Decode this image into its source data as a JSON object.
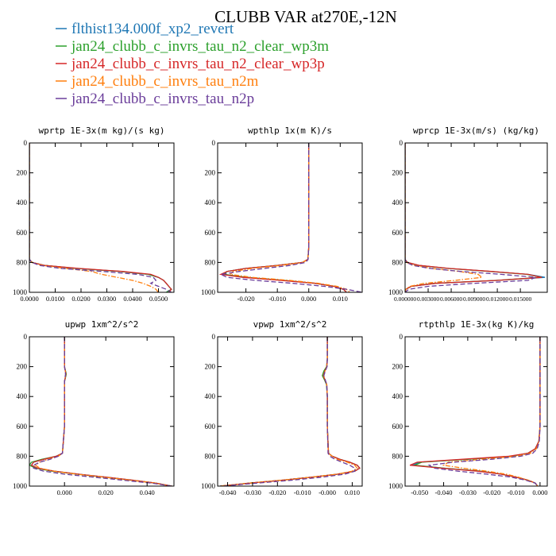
{
  "title": "CLUBB VAR at270E,-12N",
  "legend": [
    {
      "label": "flthist134.000f_xp2_revert",
      "color": "#1f77b4",
      "dash": "solid"
    },
    {
      "label": "jan24_clubb_c_invrs_tau_n2_clear_wp3m",
      "color": "#2ca02c",
      "dash": "solid"
    },
    {
      "label": "jan24_clubb_c_invrs_tau_n2_clear_wp3p",
      "color": "#d62728",
      "dash": "solid"
    },
    {
      "label": "jan24_clubb_c_invrs_tau_n2m",
      "color": "#ff7f0e",
      "dash": "dashdot"
    },
    {
      "label": "jan24_clubb_c_invrs_tau_n2p",
      "color": "#6a3d9a",
      "dash": "dash"
    }
  ],
  "chart_data": [
    {
      "type": "line",
      "title": "wprtp  1E-3x(m kg)/(s kg)",
      "xlim": [
        0,
        0.056
      ],
      "ylim": [
        1000,
        0
      ],
      "xticks": [
        "0.0000",
        "0.0100",
        "0.0200",
        "0.0300",
        "0.0400",
        "0.0500"
      ],
      "xtick_values": [
        0,
        0.01,
        0.02,
        0.03,
        0.04,
        0.05
      ],
      "yticks": [
        "0",
        "200",
        "400",
        "600",
        "800",
        "1000"
      ],
      "y": [
        0,
        780,
        800,
        820,
        840,
        860,
        880,
        900,
        920,
        940,
        960,
        980,
        1000
      ],
      "series": [
        {
          "values": [
            0,
            0,
            0.001,
            0.006,
            0.018,
            0.035,
            0.046,
            0.05,
            0.052,
            0.053,
            0.054,
            0.055,
            0.053
          ]
        },
        {
          "values": [
            0,
            0,
            0.001,
            0.006,
            0.018,
            0.035,
            0.046,
            0.05,
            0.052,
            0.053,
            0.054,
            0.055,
            0.053
          ]
        },
        {
          "values": [
            0,
            0,
            0.001,
            0.006,
            0.019,
            0.036,
            0.047,
            0.05,
            0.052,
            0.053,
            0.054,
            0.055,
            0.054
          ]
        },
        {
          "values": [
            0,
            0,
            0.001,
            0.005,
            0.014,
            0.024,
            0.028,
            0.034,
            0.04,
            0.044,
            0.047,
            0.049,
            0.05
          ]
        },
        {
          "values": [
            0,
            0,
            0.001,
            0.004,
            0.012,
            0.028,
            0.042,
            0.048,
            0.049,
            0.047,
            0.05,
            0.053,
            0.055
          ]
        }
      ]
    },
    {
      "type": "line",
      "title": "wpthlp  1x(m K)/s",
      "xlim": [
        -0.029,
        0.017
      ],
      "ylim": [
        1000,
        0
      ],
      "xticks": [
        "-0.020",
        "-0.010",
        "0.000",
        "0.010"
      ],
      "xtick_values": [
        -0.02,
        -0.01,
        0,
        0.01
      ],
      "yticks": [
        "0",
        "200",
        "400",
        "600",
        "800",
        "1000"
      ],
      "y": [
        0,
        200,
        400,
        600,
        700,
        780,
        800,
        820,
        840,
        860,
        880,
        900,
        920,
        940,
        960,
        980,
        1000
      ],
      "series": [
        {
          "values": [
            0,
            0,
            0,
            0,
            0,
            -0.0003,
            -0.002,
            -0.01,
            -0.02,
            -0.026,
            -0.027,
            -0.02,
            -0.008,
            0.002,
            0.008,
            0.011,
            0.012
          ]
        },
        {
          "values": [
            0,
            0,
            0,
            0,
            0,
            -0.0003,
            -0.002,
            -0.01,
            -0.02,
            -0.026,
            -0.027,
            -0.02,
            -0.008,
            0.002,
            0.008,
            0.011,
            0.012
          ]
        },
        {
          "values": [
            0,
            0,
            0,
            0,
            0,
            -0.0003,
            -0.002,
            -0.01,
            -0.02,
            -0.026,
            -0.028,
            -0.021,
            -0.009,
            0.002,
            0.008,
            0.011,
            0.012
          ]
        },
        {
          "values": [
            0,
            0,
            0,
            0,
            0,
            -0.0003,
            -0.002,
            -0.009,
            -0.018,
            -0.024,
            -0.025,
            -0.018,
            -0.006,
            0.003,
            0.009,
            0.012,
            0.013
          ]
        },
        {
          "values": [
            0,
            0,
            0,
            0,
            0,
            -0.0002,
            -0.001,
            -0.006,
            -0.014,
            -0.022,
            -0.028,
            -0.026,
            -0.017,
            -0.005,
            0.005,
            0.012,
            0.017
          ]
        }
      ]
    },
    {
      "type": "line",
      "title": "wprcp  1E-3x(m/s) (kg/kg)",
      "xlim": [
        0,
        0.0185
      ],
      "ylim": [
        1000,
        0
      ],
      "xticks": [
        "0.000000",
        "0.003000",
        "0.006000",
        "0.009000",
        "0.012000",
        "0.015000"
      ],
      "xtick_values": [
        0,
        0.003,
        0.006,
        0.009,
        0.012,
        0.015
      ],
      "yticks": [
        "0",
        "200",
        "400",
        "600",
        "800",
        "1000"
      ],
      "y": [
        0,
        780,
        800,
        820,
        840,
        860,
        880,
        900,
        920,
        940,
        960,
        980,
        1000
      ],
      "series": [
        {
          "values": [
            0,
            0,
            0.0003,
            0.0018,
            0.0055,
            0.011,
            0.016,
            0.0182,
            0.012,
            0.004,
            0.0008,
            0.0001,
            0
          ]
        },
        {
          "values": [
            0,
            0,
            0.0003,
            0.0018,
            0.0055,
            0.011,
            0.0158,
            0.0178,
            0.0118,
            0.0038,
            0.0008,
            0.0001,
            0
          ]
        },
        {
          "values": [
            0,
            0,
            0.0003,
            0.0019,
            0.0057,
            0.0112,
            0.016,
            0.0178,
            0.012,
            0.004,
            0.0008,
            0.0001,
            0
          ]
        },
        {
          "values": [
            0,
            0,
            0.0002,
            0.0012,
            0.0035,
            0.007,
            0.0095,
            0.01,
            0.0065,
            0.0025,
            0.0006,
            0.0001,
            0
          ]
        },
        {
          "values": [
            0,
            0,
            0.0002,
            0.001,
            0.0032,
            0.0072,
            0.0125,
            0.017,
            0.016,
            0.009,
            0.003,
            0.0005,
            0
          ]
        }
      ]
    },
    {
      "type": "line",
      "title": "upwp  1xm^2/s^2",
      "xlim": [
        -0.017,
        0.053
      ],
      "ylim": [
        1000,
        0
      ],
      "xticks": [
        "0.000",
        "0.020",
        "0.040"
      ],
      "xtick_values": [
        0,
        0.02,
        0.04
      ],
      "yticks": [
        "0",
        "200",
        "400",
        "600",
        "800",
        "1000"
      ],
      "y": [
        0,
        150,
        200,
        250,
        300,
        400,
        600,
        780,
        800,
        820,
        840,
        860,
        880,
        900,
        920,
        940,
        960,
        980,
        1000
      ],
      "series": [
        {
          "values": [
            0,
            0,
            0,
            0.0008,
            0,
            0,
            0,
            -0.001,
            -0.004,
            -0.01,
            -0.015,
            -0.016,
            -0.013,
            -0.005,
            0.007,
            0.02,
            0.033,
            0.044,
            0.052
          ]
        },
        {
          "values": [
            0,
            0,
            0,
            0.0009,
            0,
            0,
            0,
            -0.001,
            -0.004,
            -0.011,
            -0.016,
            -0.017,
            -0.014,
            -0.006,
            0.006,
            0.019,
            0.032,
            0.044,
            0.052
          ]
        },
        {
          "values": [
            0,
            0,
            0,
            0.0007,
            0,
            0,
            0,
            -0.001,
            -0.004,
            -0.01,
            -0.015,
            -0.016,
            -0.013,
            -0.005,
            0.007,
            0.02,
            0.033,
            0.044,
            0.052
          ]
        },
        {
          "values": [
            0,
            0,
            0,
            0.0006,
            0,
            0,
            0,
            -0.001,
            -0.003,
            -0.008,
            -0.012,
            -0.014,
            -0.012,
            -0.005,
            0.006,
            0.019,
            0.032,
            0.044,
            0.052
          ]
        },
        {
          "values": [
            0,
            0,
            0,
            0.0005,
            0,
            0,
            0,
            -0.001,
            -0.003,
            -0.007,
            -0.012,
            -0.015,
            -0.015,
            -0.01,
            0.0,
            0.014,
            0.028,
            0.042,
            0.052
          ]
        }
      ]
    },
    {
      "type": "line",
      "title": "vpwp  1xm^2/s^2",
      "xlim": [
        -0.044,
        0.014
      ],
      "ylim": [
        1000,
        0
      ],
      "xticks": [
        "-0.040",
        "-0.030",
        "-0.020",
        "-0.010",
        "-0.000",
        "0.010"
      ],
      "xtick_values": [
        -0.04,
        -0.03,
        -0.02,
        -0.01,
        0,
        0.01
      ],
      "yticks": [
        "0",
        "200",
        "400",
        "600",
        "800",
        "1000"
      ],
      "y": [
        0,
        150,
        200,
        230,
        260,
        290,
        320,
        400,
        600,
        780,
        800,
        820,
        840,
        860,
        880,
        900,
        920,
        940,
        960,
        980,
        1000
      ],
      "series": [
        {
          "values": [
            0,
            0,
            -0.0002,
            -0.0012,
            -0.0018,
            -0.001,
            -0.0003,
            0,
            0,
            0.0005,
            0.002,
            0.005,
            0.009,
            0.012,
            0.013,
            0.011,
            0.004,
            -0.006,
            -0.018,
            -0.031,
            -0.043
          ]
        },
        {
          "values": [
            0,
            0,
            -0.0003,
            -0.0014,
            -0.002,
            -0.0011,
            -0.0003,
            0,
            0,
            0.0005,
            0.002,
            0.005,
            0.009,
            0.012,
            0.013,
            0.011,
            0.004,
            -0.006,
            -0.018,
            -0.031,
            -0.043
          ]
        },
        {
          "values": [
            0,
            0,
            -0.0002,
            -0.001,
            -0.0016,
            -0.0009,
            -0.0002,
            0,
            0,
            0.0005,
            0.002,
            0.005,
            0.009,
            0.012,
            0.013,
            0.011,
            0.004,
            -0.006,
            -0.018,
            -0.031,
            -0.043
          ]
        },
        {
          "values": [
            0,
            0,
            -0.0002,
            -0.0009,
            -0.0015,
            -0.0008,
            -0.0002,
            0,
            0,
            0.0004,
            0.002,
            0.004,
            0.008,
            0.011,
            0.012,
            0.01,
            0.004,
            -0.006,
            -0.018,
            -0.031,
            -0.043
          ]
        },
        {
          "values": [
            0,
            0,
            -0.0001,
            -0.0008,
            -0.0014,
            -0.0008,
            -0.0002,
            0,
            0,
            0.0003,
            0.001,
            0.003,
            0.006,
            0.009,
            0.011,
            0.011,
            0.007,
            -0.002,
            -0.014,
            -0.028,
            -0.042
          ]
        }
      ]
    },
    {
      "type": "line",
      "title": "rtpthlp  1E-3x(kg K)/kg",
      "xlim": [
        -0.056,
        0.003
      ],
      "ylim": [
        1000,
        0
      ],
      "xticks": [
        "-0.050",
        "-0.040",
        "-0.030",
        "-0.020",
        "-0.010",
        "0.000"
      ],
      "xtick_values": [
        -0.05,
        -0.04,
        -0.03,
        -0.02,
        -0.01,
        0
      ],
      "yticks": [
        "0",
        "200",
        "400",
        "600",
        "800",
        "1000"
      ],
      "y": [
        0,
        400,
        600,
        700,
        750,
        780,
        800,
        820,
        840,
        860,
        880,
        900,
        920,
        940,
        960,
        980,
        1000
      ],
      "series": [
        {
          "values": [
            0,
            0,
            0,
            -0.0005,
            -0.002,
            -0.005,
            -0.012,
            -0.03,
            -0.05,
            -0.053,
            -0.04,
            -0.025,
            -0.016,
            -0.01,
            -0.005,
            -0.002,
            -0.001
          ]
        },
        {
          "values": [
            0,
            0,
            0,
            -0.0005,
            -0.002,
            -0.005,
            -0.012,
            -0.03,
            -0.049,
            -0.052,
            -0.04,
            -0.025,
            -0.016,
            -0.01,
            -0.005,
            -0.002,
            -0.001
          ]
        },
        {
          "values": [
            0,
            0,
            0,
            -0.0005,
            -0.002,
            -0.005,
            -0.013,
            -0.032,
            -0.051,
            -0.054,
            -0.041,
            -0.026,
            -0.016,
            -0.01,
            -0.005,
            -0.002,
            -0.001
          ]
        },
        {
          "values": [
            0,
            0,
            0,
            -0.0004,
            -0.0015,
            -0.004,
            -0.01,
            -0.024,
            -0.038,
            -0.04,
            -0.032,
            -0.022,
            -0.014,
            -0.009,
            -0.005,
            -0.002,
            -0.001
          ]
        },
        {
          "values": [
            0,
            0,
            0,
            -0.0003,
            -0.0012,
            -0.003,
            -0.008,
            -0.02,
            -0.036,
            -0.046,
            -0.044,
            -0.034,
            -0.022,
            -0.012,
            -0.006,
            -0.002,
            -0.001
          ]
        }
      ]
    }
  ]
}
